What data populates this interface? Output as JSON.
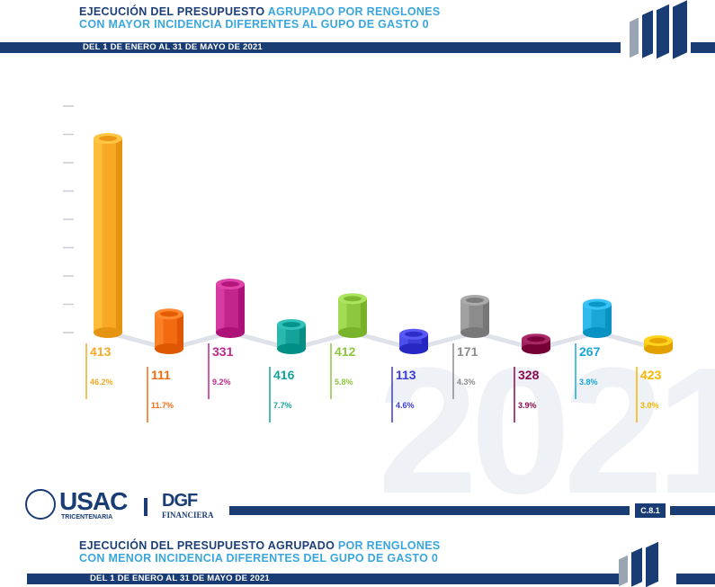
{
  "header1": {
    "line1_dark": "EJECUCIÓN DEL PRESUPUESTO ",
    "line1_light": "AGRUPADO POR RENGLONES",
    "line2_light": "CON MAYOR INCIDENCIA DIFERENTES AL GUPO DE GASTO 0",
    "period": "DEL 1 DE ENERO AL 31 DE MAYO DE 2021"
  },
  "header2": {
    "line1_dark": "EJECUCIÓN DEL PRESUPUESTO AGRUPADO ",
    "line1_light": "POR RENGLONES",
    "line2_light": "CON MENOR INCIDENCIA DIFERENTES DEL GUPO DE GASTO 0",
    "period": "DEL 1 DE ENERO AL 31 DE MAYO DE 2021"
  },
  "footer": {
    "usac": "USAC",
    "usac_sub": "TRICENTENARIA",
    "dgf": "DGF",
    "dgf_sub": "FINANCIERA",
    "badge": "C.8.1",
    "watermark": "2021"
  },
  "chart_data": {
    "type": "bar",
    "style": "3d-cylinders",
    "categories": [
      "413",
      "111",
      "331",
      "416",
      "412",
      "113",
      "171",
      "328",
      "267",
      "423"
    ],
    "values": [
      240,
      43,
      60,
      30,
      42,
      18,
      40,
      12,
      35,
      10
    ],
    "percents": [
      "46.2%",
      "11.7%",
      "9.2%",
      "7.7%",
      "5.8%",
      "4.6%",
      "4.3%",
      "3.9%",
      "3.8%",
      "3.0%"
    ],
    "colors": [
      "#f9a825",
      "#f36b10",
      "#c2268c",
      "#14a39a",
      "#8dc63f",
      "#3b3bd8",
      "#8c8c8c",
      "#8a0a4a",
      "#1aa7d8",
      "#f7b500"
    ],
    "ylim": [
      0,
      250
    ]
  }
}
